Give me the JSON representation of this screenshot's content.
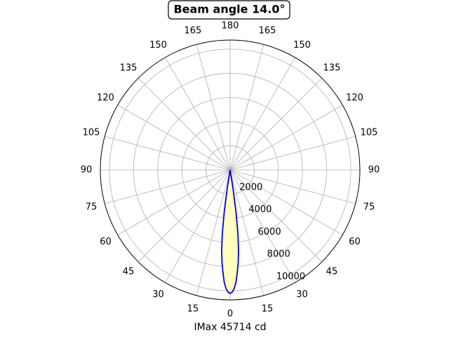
{
  "chart_data": {
    "type": "polar-line",
    "title": "Beam angle 14.0°",
    "xlabel": "IMax 45714 cd",
    "x": [
      -10,
      -9,
      -8,
      -7,
      -6,
      -5,
      -4,
      -3,
      -2,
      -1,
      0,
      1,
      2,
      3,
      4,
      5,
      6,
      7,
      8,
      9,
      10
    ],
    "series": [
      {
        "color": "#0000dd",
        "fill": "#ffffc0",
        "values": [
          0,
          1500,
          3500,
          5300,
          6700,
          7700,
          8500,
          9300,
          9800,
          10100,
          10200,
          10100,
          9800,
          9300,
          8500,
          7700,
          6700,
          5300,
          3500,
          1500,
          0
        ]
      }
    ],
    "rlim": [
      0,
      10750
    ],
    "rticks": [
      2000,
      4000,
      6000,
      8000,
      10000
    ],
    "thetaticks": [
      {
        "value": -165,
        "label": "165"
      },
      {
        "value": -150,
        "label": "150"
      },
      {
        "value": -135,
        "label": "135"
      },
      {
        "value": -120,
        "label": "120"
      },
      {
        "value": -105,
        "label": "105"
      },
      {
        "value": -90,
        "label": "90"
      },
      {
        "value": -75,
        "label": "75"
      },
      {
        "value": -60,
        "label": "60"
      },
      {
        "value": -45,
        "label": "45"
      },
      {
        "value": -30,
        "label": "30"
      },
      {
        "value": -15,
        "label": "15"
      },
      0,
      15,
      30,
      45,
      60,
      75,
      90,
      105,
      120,
      135,
      150,
      165,
      180
    ],
    "grid": true
  }
}
